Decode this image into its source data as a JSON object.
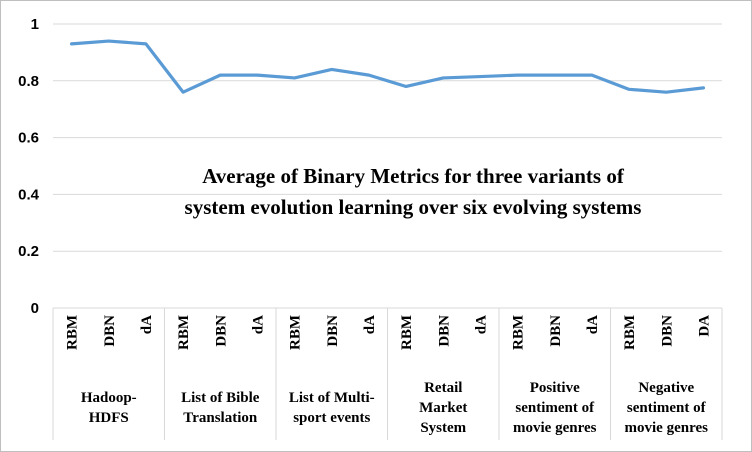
{
  "chart_data": {
    "type": "line",
    "title_lines": [
      "Average of Binary Metrics for three variants of",
      "system evolution learning over six evolving systems"
    ],
    "xlabel": "",
    "ylabel": "",
    "ylim": [
      0,
      1
    ],
    "yticks": [
      "0",
      "0.2",
      "0.4",
      "0.6",
      "0.8",
      "1"
    ],
    "grid": true,
    "legend": "none",
    "color": "#5b9bd5",
    "groups": [
      {
        "label_lines": [
          "Hadoop-",
          "HDFS"
        ],
        "categories": [
          "RBM",
          "DBN",
          "dA"
        ]
      },
      {
        "label_lines": [
          "List of Bible",
          "Translation"
        ],
        "categories": [
          "RBM",
          "DBN",
          "dA"
        ]
      },
      {
        "label_lines": [
          "List of Multi-",
          "sport events"
        ],
        "categories": [
          "RBM",
          "DBN",
          "dA"
        ]
      },
      {
        "label_lines": [
          "Retail",
          "Market",
          "System"
        ],
        "categories": [
          "RBM",
          "DBN",
          "dA"
        ]
      },
      {
        "label_lines": [
          "Positive",
          "sentiment of",
          "movie genres"
        ],
        "categories": [
          "RBM",
          "DBN",
          "dA"
        ]
      },
      {
        "label_lines": [
          "Negative",
          "sentiment of",
          "movie genres"
        ],
        "categories": [
          "RBM",
          "DBN",
          "DA"
        ]
      }
    ],
    "series": [
      {
        "values": [
          0.93,
          0.94,
          0.93,
          0.76,
          0.82,
          0.82,
          0.81,
          0.84,
          0.82,
          0.78,
          0.81,
          0.815,
          0.82,
          0.82,
          0.82,
          0.77,
          0.76,
          0.775
        ]
      }
    ]
  }
}
